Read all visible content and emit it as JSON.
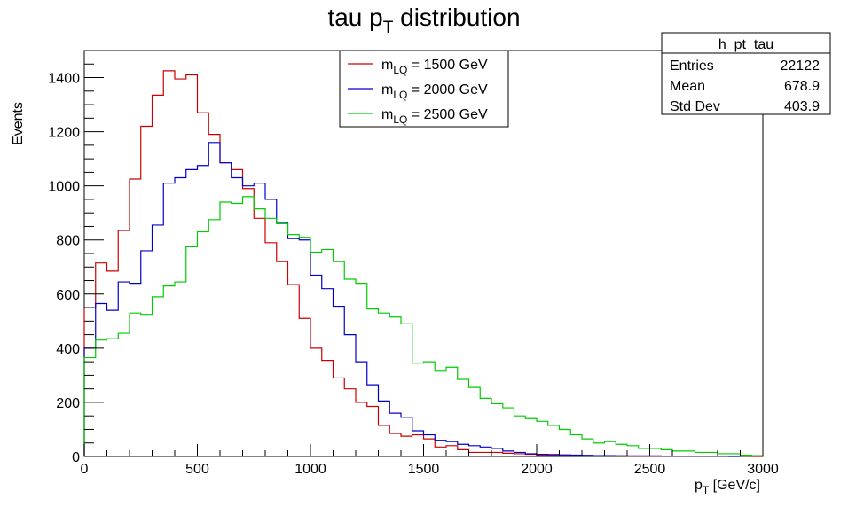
{
  "chart_data": {
    "type": "line",
    "title_main": "tau p",
    "title_sub": "T",
    "title_rest": " distribution",
    "xlabel_main": "p",
    "xlabel_sub": "T",
    "xlabel_rest": " [GeV/c]",
    "ylabel": "Events",
    "xlim": [
      0,
      3000
    ],
    "ylim": [
      0,
      1500
    ],
    "x_ticks": [
      0,
      500,
      1000,
      1500,
      2000,
      2500,
      3000
    ],
    "x_tick_labels": [
      "0",
      "500",
      "1000",
      "1500",
      "2000",
      "2500",
      "3000"
    ],
    "y_ticks": [
      0,
      200,
      400,
      600,
      800,
      1000,
      1200,
      1400
    ],
    "y_tick_labels": [
      "0",
      "200",
      "400",
      "600",
      "800",
      "1000",
      "1200",
      "1400"
    ],
    "grid": false,
    "bin_width": 50,
    "series": [
      {
        "name_main": "m",
        "name_sub": "LQ",
        "name_rest": " = 1500 GeV",
        "color": "#cc0000",
        "values": [
          550,
          715,
          685,
          835,
          1025,
          1220,
          1335,
          1425,
          1395,
          1410,
          1270,
          1190,
          1085,
          1060,
          990,
          880,
          790,
          720,
          635,
          510,
          400,
          355,
          290,
          250,
          200,
          185,
          115,
          85,
          75,
          80,
          65,
          35,
          40,
          25,
          15,
          15,
          15,
          12,
          10,
          8,
          5,
          5,
          4,
          4,
          3,
          3,
          2,
          2,
          1,
          1,
          1,
          1,
          1,
          1,
          1,
          1,
          1,
          1,
          1,
          0
        ]
      },
      {
        "name_main": "m",
        "name_sub": "LQ",
        "name_rest": " = 2000 GeV",
        "color": "#0000cc",
        "values": [
          400,
          565,
          540,
          645,
          640,
          760,
          855,
          1010,
          1030,
          1060,
          1075,
          1160,
          1085,
          1030,
          1000,
          1010,
          950,
          865,
          805,
          800,
          670,
          620,
          555,
          450,
          350,
          265,
          205,
          160,
          145,
          95,
          80,
          60,
          55,
          45,
          40,
          35,
          30,
          20,
          15,
          10,
          8,
          7,
          6,
          5,
          4,
          3,
          3,
          2,
          2,
          2,
          2,
          1,
          1,
          1,
          1,
          1,
          1,
          0
        ]
      },
      {
        "name_main": "m",
        "name_sub": "LQ",
        "name_rest": " = 2500 GeV",
        "color": "#00cc00",
        "values": [
          365,
          430,
          435,
          455,
          530,
          525,
          590,
          630,
          645,
          775,
          830,
          875,
          940,
          935,
          960,
          915,
          880,
          860,
          820,
          810,
          755,
          765,
          720,
          655,
          640,
          545,
          530,
          515,
          490,
          345,
          350,
          315,
          330,
          285,
          255,
          215,
          195,
          180,
          150,
          140,
          130,
          115,
          100,
          80,
          65,
          50,
          55,
          45,
          40,
          30,
          30,
          25,
          20,
          20,
          15,
          15,
          10,
          10,
          5,
          3
        ]
      }
    ],
    "legend_position": "top-center"
  },
  "stats": {
    "title": "h_pt_tau",
    "rows": [
      {
        "label": "Entries",
        "value": "22122"
      },
      {
        "label": "Mean",
        "value": "678.9"
      },
      {
        "label": "Std Dev",
        "value": "403.9"
      }
    ]
  }
}
